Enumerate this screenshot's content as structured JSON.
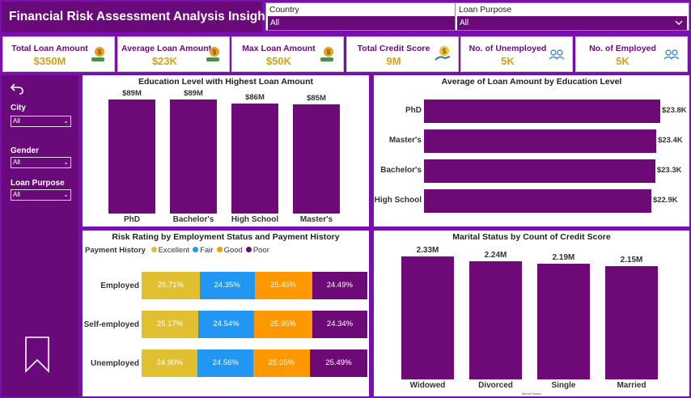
{
  "header": {
    "title": "Financial Risk Assessment Analysis Insights"
  },
  "slicers": {
    "country": {
      "label": "Country",
      "value": "All"
    },
    "loan_purpose": {
      "label": "Loan Purpose",
      "value": "All"
    }
  },
  "kpis": [
    {
      "title": "Total Loan Amount",
      "value": "$350M",
      "icon": "money-bag-hand-icon"
    },
    {
      "title": "Average Loan Amount",
      "value": "$23K",
      "icon": "money-bag-hand-icon"
    },
    {
      "title": "Max Loan Amount",
      "value": "$50K",
      "icon": "money-bag-hand-icon"
    },
    {
      "title": "Total Credit Score",
      "value": "9M",
      "icon": "dollar-hand-icon"
    },
    {
      "title": "No. of Unemployed",
      "value": "5K",
      "icon": "people-icon"
    },
    {
      "title": "No. of Employed",
      "value": "5K",
      "icon": "people-icon"
    }
  ],
  "sidebar": {
    "back_icon": "back-arrow-icon",
    "filters": [
      {
        "label": "City",
        "value": "All"
      },
      {
        "label": "Gender",
        "value": "All"
      },
      {
        "label": "Loan Purpose",
        "value": "All"
      }
    ],
    "bookmark_icon": "bookmark-icon"
  },
  "chart_data": [
    {
      "type": "bar",
      "title": "Education Level with Highest Loan Amount",
      "categories": [
        "PhD",
        "Bachelor's",
        "High School",
        "Master's"
      ],
      "values": [
        89,
        89,
        86,
        85
      ],
      "data_labels": [
        "$89M",
        "$89M",
        "$86M",
        "$85M"
      ],
      "unit": "M",
      "color": "#6e0a78"
    },
    {
      "type": "bar",
      "orientation": "horizontal",
      "title": "Average of Loan Amount by Education Level",
      "categories": [
        "PhD",
        "Master's",
        "Bachelor's",
        "High School"
      ],
      "values": [
        23.8,
        23.4,
        23.3,
        22.9
      ],
      "data_labels": [
        "$23.8K",
        "$23.4K",
        "$23.3K",
        "$22.9K"
      ],
      "color": "#6e0a78"
    },
    {
      "type": "bar",
      "orientation": "horizontal",
      "stacked": "100%",
      "title": "Risk Rating by Employment Status and Payment History",
      "legend_title": "Payment History",
      "categories": [
        "Employed",
        "Self-employed",
        "Unemployed"
      ],
      "series": [
        {
          "name": "Excellent",
          "color": "#e0c030",
          "values": [
            25.71,
            25.17,
            24.9
          ],
          "labels": [
            "25.71%",
            "25.17%",
            "24.90%"
          ]
        },
        {
          "name": "Fair",
          "color": "#2196f3",
          "values": [
            24.35,
            24.54,
            24.56
          ],
          "labels": [
            "24.35%",
            "24.54%",
            "24.56%"
          ]
        },
        {
          "name": "Good",
          "color": "#ff9800",
          "values": [
            25.45,
            25.95,
            25.05
          ],
          "labels": [
            "25.45%",
            "25.95%",
            "25.05%"
          ]
        },
        {
          "name": "Poor",
          "color": "#6e0a78",
          "values": [
            24.49,
            24.34,
            25.49
          ],
          "labels": [
            "24.49%",
            "24.34%",
            "25.49%"
          ]
        }
      ]
    },
    {
      "type": "bar",
      "title": "Marital Status by Count of Credit Score",
      "xlabel": "Marital Status",
      "categories": [
        "Widowed",
        "Divorced",
        "Single",
        "Married"
      ],
      "values": [
        2.33,
        2.24,
        2.19,
        2.15
      ],
      "data_labels": [
        "2.33M",
        "2.24M",
        "2.19M",
        "2.15M"
      ],
      "color": "#6e0a78"
    }
  ]
}
